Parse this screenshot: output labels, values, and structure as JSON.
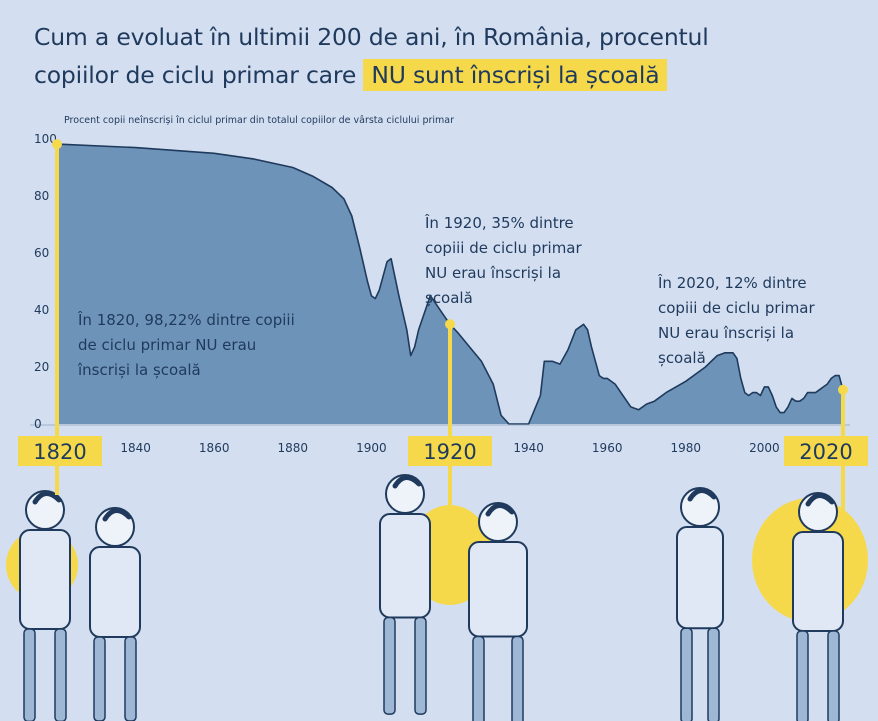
{
  "title": {
    "line1": "Cum a evoluat în ultimii 200 de ani, în România, procentul",
    "line2_plain": "copiilor de ciclu primar care ",
    "line2_highlight": "NU sunt înscriși la școală"
  },
  "colors": {
    "background": "#d3def0",
    "area_fill": "#6d93b8",
    "line": "#1f3a5c",
    "highlight": "#f6d94a",
    "text": "#1f3a5c"
  },
  "chart_data": {
    "type": "area",
    "ylabel": "Procent copii neînscriși în ciclul primar din totalul copiilor de vârsta ciclului primar",
    "ylim": [
      0,
      100
    ],
    "xlim": [
      1820,
      2020
    ],
    "y_ticks": [
      0,
      20,
      40,
      60,
      80,
      100
    ],
    "x_ticks": [
      1840,
      1860,
      1880,
      1900,
      1940,
      1960,
      1980,
      2000
    ],
    "x_highlight_ticks": [
      1820,
      1920,
      2020
    ],
    "grid": false,
    "x": [
      1820,
      1840,
      1860,
      1870,
      1880,
      1885,
      1890,
      1893,
      1895,
      1897,
      1899,
      1900,
      1901,
      1902,
      1903,
      1904,
      1905,
      1907,
      1909,
      1910,
      1911,
      1912,
      1914,
      1915,
      1916,
      1918,
      1920,
      1922,
      1925,
      1928,
      1931,
      1933,
      1935,
      1940,
      1943,
      1944,
      1946,
      1948,
      1950,
      1952,
      1954,
      1955,
      1956,
      1958,
      1959,
      1960,
      1962,
      1964,
      1966,
      1968,
      1970,
      1972,
      1975,
      1980,
      1985,
      1988,
      1990,
      1992,
      1993,
      1994,
      1995,
      1996,
      1997,
      1998,
      1999,
      2000,
      2001,
      2002,
      2003,
      2004,
      2005,
      2006,
      2007,
      2008,
      2009,
      2010,
      2011,
      2012,
      2013,
      2014,
      2015,
      2016,
      2017,
      2018,
      2019,
      2020
    ],
    "values": [
      98.2,
      97,
      95,
      93,
      90,
      87,
      83,
      79,
      73,
      62,
      50,
      45,
      44,
      47,
      52,
      57,
      58,
      45,
      33,
      24,
      27,
      33,
      41,
      45,
      43,
      39,
      35,
      32,
      27,
      22,
      14,
      3,
      0,
      0,
      10,
      22,
      22,
      21,
      26,
      33,
      35,
      33,
      27,
      17,
      16,
      16,
      14,
      10,
      6,
      5,
      7,
      8,
      11,
      15,
      20,
      24,
      25,
      25,
      23,
      16,
      11,
      10,
      11,
      11,
      10,
      13,
      13,
      10,
      6,
      4,
      4,
      6,
      9,
      8,
      8,
      9,
      11,
      11,
      11,
      12,
      13,
      14,
      16,
      17,
      17,
      12
    ]
  },
  "annotations": [
    {
      "text": "În 1820, 98,22% dintre copiii de ciclu primar NU erau înscriși la școală"
    },
    {
      "text": "În 1920, 35% dintre copiii de ciclu primar NU erau înscriși la școală"
    },
    {
      "text": "În 2020, 12% dintre copiii de ciclu primar NU erau înscriși la școală"
    }
  ]
}
